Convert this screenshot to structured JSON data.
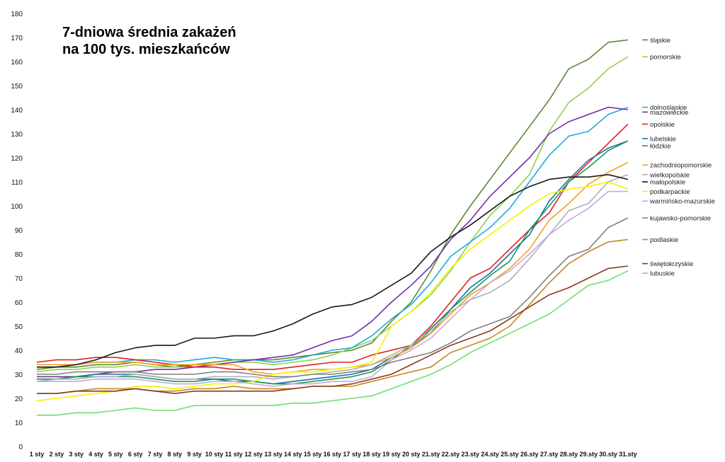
{
  "chart_data": {
    "type": "line",
    "title_line1": "7-dniowa średnia zakażeń",
    "title_line2": "na 100 tys. mieszkańców",
    "xlabel": "",
    "ylabel": "",
    "ylim": [
      0,
      180
    ],
    "yticks": [
      0,
      10,
      20,
      30,
      40,
      50,
      60,
      70,
      80,
      90,
      100,
      110,
      120,
      130,
      140,
      150,
      160,
      170,
      180
    ],
    "grid": false,
    "legend_position": "right, labels at line ends",
    "categories": [
      "1 sty",
      "2 sty",
      "3 sty",
      "4 sty",
      "5 sty",
      "6 sty",
      "7 sty",
      "8 sty",
      "9 sty",
      "10 sty",
      "11 sty",
      "12 sty",
      "13 sty",
      "14 sty",
      "15 sty",
      "16 sty",
      "17 sty",
      "18 sty",
      "19 sty",
      "20 sty",
      "21.sty",
      "22.sty",
      "23.sty",
      "24.sty",
      "25.sty",
      "26.sty",
      "27.sty",
      "28.sty",
      "29.sty",
      "30.sty",
      "31.sty"
    ],
    "series": [
      {
        "name": "śląskie",
        "color": "#5a8a32",
        "label_y": 169,
        "values": [
          32,
          33,
          33,
          34,
          34,
          35,
          34,
          33,
          34,
          35,
          36,
          36,
          36,
          37,
          38,
          39,
          40,
          43,
          52,
          60,
          73,
          88,
          100,
          111,
          122,
          133,
          144,
          157,
          161,
          168,
          169
        ]
      },
      {
        "name": "pomorskie",
        "color": "#92d050",
        "label_y": 162,
        "values": [
          31,
          32,
          32,
          33,
          33,
          34,
          33,
          33,
          33,
          34,
          35,
          35,
          34,
          35,
          36,
          38,
          41,
          44,
          50,
          56,
          63,
          73,
          85,
          96,
          104,
          113,
          131,
          143,
          149,
          157,
          162
        ]
      },
      {
        "name": "dolnośląskie",
        "color": "#1fa8e0",
        "label_y": 141,
        "values": [
          33,
          33,
          34,
          35,
          35,
          36,
          36,
          35,
          36,
          37,
          36,
          36,
          35,
          36,
          38,
          40,
          41,
          46,
          53,
          59,
          68,
          79,
          85,
          91,
          99,
          110,
          121,
          129,
          131,
          138,
          141
        ]
      },
      {
        "name": "mazowieckie",
        "color": "#7030a0",
        "label_y": 139,
        "values": [
          29,
          29,
          29,
          30,
          31,
          31,
          32,
          32,
          33,
          34,
          35,
          36,
          37,
          38,
          41,
          44,
          46,
          52,
          60,
          67,
          75,
          86,
          94,
          104,
          112,
          120,
          130,
          135,
          138,
          141,
          140
        ]
      },
      {
        "name": "opolskie",
        "color": "#e02020",
        "label_y": 134,
        "values": [
          35,
          36,
          36,
          37,
          37,
          36,
          35,
          34,
          33,
          33,
          32,
          32,
          32,
          33,
          34,
          35,
          35,
          38,
          40,
          42,
          50,
          60,
          70,
          74,
          82,
          90,
          97,
          110,
          118,
          126,
          134
        ]
      },
      {
        "name": "lubelskie",
        "color": "#1f6fa5",
        "label_y": 128,
        "values": [
          28,
          28,
          29,
          30,
          30,
          30,
          29,
          28,
          28,
          28,
          27,
          27,
          26,
          27,
          28,
          29,
          30,
          32,
          37,
          41,
          49,
          57,
          66,
          72,
          80,
          88,
          102,
          111,
          119,
          124,
          127
        ]
      },
      {
        "name": "łódzkie",
        "color": "#159a5a",
        "label_y": 125,
        "values": [
          28,
          28,
          29,
          29,
          29,
          29,
          28,
          27,
          27,
          28,
          28,
          27,
          26,
          26,
          27,
          28,
          29,
          31,
          36,
          42,
          47,
          57,
          64,
          71,
          77,
          90,
          100,
          110,
          116,
          123,
          127
        ]
      },
      {
        "name": "zachodniopomorskie",
        "color": "#f4a020",
        "label_y": 117,
        "values": [
          34,
          34,
          34,
          35,
          35,
          35,
          34,
          34,
          34,
          34,
          34,
          31,
          30,
          31,
          32,
          32,
          33,
          34,
          37,
          41,
          47,
          55,
          63,
          68,
          74,
          82,
          94,
          101,
          109,
          114,
          118
        ]
      },
      {
        "name": "wielkopolskie",
        "color": "#b0b0b0",
        "label_y": 113,
        "values": [
          27,
          28,
          28,
          29,
          29,
          30,
          29,
          28,
          28,
          29,
          29,
          29,
          28,
          29,
          30,
          31,
          32,
          34,
          38,
          42,
          48,
          56,
          61,
          64,
          69,
          78,
          88,
          98,
          101,
          110,
          113
        ]
      },
      {
        "name": "małopolskie",
        "color": "#1a1a1a",
        "label_y": 110,
        "values": [
          33,
          33,
          34,
          36,
          39,
          41,
          42,
          42,
          45,
          45,
          46,
          46,
          48,
          51,
          55,
          58,
          59,
          62,
          67,
          72,
          81,
          87,
          92,
          98,
          104,
          108,
          111,
          112,
          112,
          113,
          111
        ]
      },
      {
        "name": "podkarpackie",
        "color": "#f2f200",
        "label_y": 106,
        "values": [
          19,
          20,
          21,
          22,
          23,
          25,
          25,
          24,
          25,
          26,
          26,
          27,
          30,
          31,
          31,
          32,
          33,
          35,
          50,
          56,
          64,
          74,
          82,
          88,
          94,
          100,
          105,
          107,
          108,
          110,
          107
        ]
      },
      {
        "name": "warmińsko-mazurskie",
        "color": "#c8a8e0",
        "label_y": 102,
        "values": [
          27,
          27,
          27,
          28,
          28,
          28,
          27,
          26,
          26,
          27,
          27,
          26,
          25,
          26,
          26,
          27,
          27,
          29,
          36,
          40,
          45,
          53,
          61,
          68,
          73,
          80,
          88,
          94,
          99,
          106,
          106
        ]
      },
      {
        "name": "kujawsko-pomorskie",
        "color": "#808080",
        "label_y": 95,
        "values": [
          30,
          30,
          31,
          31,
          31,
          31,
          30,
          30,
          30,
          31,
          31,
          30,
          29,
          29,
          30,
          30,
          31,
          32,
          35,
          37,
          39,
          43,
          48,
          51,
          54,
          62,
          71,
          79,
          82,
          91,
          95
        ]
      },
      {
        "name": "podlaskie",
        "color": "#c08820",
        "label_y": 86,
        "values": [
          22,
          22,
          23,
          24,
          24,
          24,
          23,
          23,
          24,
          24,
          25,
          24,
          24,
          24,
          25,
          25,
          25,
          27,
          29,
          31,
          33,
          39,
          42,
          45,
          50,
          59,
          68,
          76,
          81,
          85,
          86
        ]
      },
      {
        "name": "świętokrzyskie",
        "color": "#8b3a1a",
        "label_y": 76,
        "values": [
          22,
          22,
          23,
          23,
          23,
          24,
          23,
          22,
          23,
          23,
          23,
          23,
          23,
          24,
          25,
          25,
          26,
          28,
          30,
          34,
          38,
          42,
          45,
          48,
          53,
          58,
          63,
          66,
          70,
          74,
          75
        ]
      },
      {
        "name": "lubuskie",
        "color": "#6ee06e",
        "label_y": 72,
        "values": [
          13,
          13,
          14,
          14,
          15,
          16,
          15,
          15,
          17,
          17,
          17,
          17,
          17,
          18,
          18,
          19,
          20,
          21,
          24,
          27,
          30,
          34,
          39,
          43,
          47,
          51,
          55,
          61,
          67,
          69,
          73
        ]
      }
    ]
  }
}
